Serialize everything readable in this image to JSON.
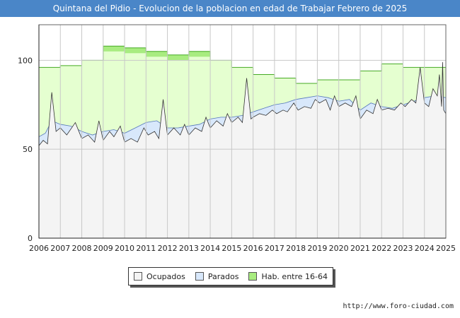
{
  "header": {
    "title": "Quintana del Pidio - Evolucion de la poblacion en edad de Trabajar Febrero de 2025"
  },
  "footer": {
    "source": "http://www.foro-ciudad.com"
  },
  "colors": {
    "title_bg": "#4a86c8",
    "hab_fill": "#e5ffd0",
    "hab_fill_dark": "#a8ec80",
    "hab_line": "#44aa22",
    "parados_fill": "#d8e8fb",
    "parados_line": "#5577bb",
    "ocupados_fill": "#f4f4f4",
    "ocupados_line": "#333333"
  },
  "chart_data": {
    "type": "area",
    "title": "Quintana del Pidio - Evolucion de la poblacion en edad de Trabajar Febrero de 2025",
    "xlim": [
      2006,
      2025
    ],
    "ylim": [
      0,
      120
    ],
    "x_ticks": [
      2006,
      2007,
      2008,
      2009,
      2010,
      2011,
      2012,
      2013,
      2014,
      2015,
      2016,
      2017,
      2018,
      2019,
      2020,
      2021,
      2022,
      2023,
      2024,
      2025
    ],
    "y_ticks": [
      0,
      50,
      100
    ],
    "grid": true,
    "legend_position": "bottom",
    "legend": [
      "Ocupados",
      "Parados",
      "Hab. entre 16-64"
    ],
    "hab_steps": [
      {
        "from": 2006,
        "to": 2007,
        "value": 96
      },
      {
        "from": 2007,
        "to": 2008,
        "value": 97
      },
      {
        "from": 2008,
        "to": 2009,
        "value": 100
      },
      {
        "from": 2009,
        "to": 2010,
        "value": 108
      },
      {
        "from": 2010,
        "to": 2011,
        "value": 107
      },
      {
        "from": 2011,
        "to": 2012,
        "value": 105
      },
      {
        "from": 2012,
        "to": 2013,
        "value": 103
      },
      {
        "from": 2013,
        "to": 2014,
        "value": 105
      },
      {
        "from": 2014,
        "to": 2015,
        "value": 100
      },
      {
        "from": 2015,
        "to": 2016,
        "value": 96
      },
      {
        "from": 2016,
        "to": 2017,
        "value": 92
      },
      {
        "from": 2017,
        "to": 2018,
        "value": 90
      },
      {
        "from": 2018,
        "to": 2019,
        "value": 87
      },
      {
        "from": 2019,
        "to": 2020,
        "value": 89
      },
      {
        "from": 2020,
        "to": 2021,
        "value": 89
      },
      {
        "from": 2021,
        "to": 2022,
        "value": 94
      },
      {
        "from": 2022,
        "to": 2023,
        "value": 98
      },
      {
        "from": 2023,
        "to": 2024,
        "value": 96
      },
      {
        "from": 2024,
        "to": 2025,
        "value": 96
      }
    ],
    "parados_points": [
      [
        2006.0,
        57
      ],
      [
        2006.3,
        59
      ],
      [
        2006.6,
        66
      ],
      [
        2007.0,
        64
      ],
      [
        2007.5,
        63
      ],
      [
        2008.0,
        60
      ],
      [
        2008.5,
        58
      ],
      [
        2009.0,
        60
      ],
      [
        2009.5,
        61
      ],
      [
        2010.0,
        59
      ],
      [
        2010.5,
        62
      ],
      [
        2011.0,
        65
      ],
      [
        2011.5,
        66
      ],
      [
        2012.0,
        62
      ],
      [
        2012.5,
        62
      ],
      [
        2013.0,
        63
      ],
      [
        2013.5,
        64
      ],
      [
        2014.0,
        67
      ],
      [
        2014.5,
        68
      ],
      [
        2015.0,
        68
      ],
      [
        2015.5,
        69
      ],
      [
        2016.0,
        71
      ],
      [
        2016.5,
        73
      ],
      [
        2017.0,
        75
      ],
      [
        2017.5,
        76
      ],
      [
        2018.0,
        78
      ],
      [
        2018.5,
        79
      ],
      [
        2019.0,
        80
      ],
      [
        2019.5,
        79
      ],
      [
        2020.0,
        77
      ],
      [
        2020.5,
        78
      ],
      [
        2021.0,
        72
      ],
      [
        2021.5,
        76
      ],
      [
        2022.0,
        74
      ],
      [
        2022.5,
        73
      ],
      [
        2023.0,
        75
      ],
      [
        2023.5,
        77
      ],
      [
        2024.0,
        79
      ],
      [
        2024.5,
        80
      ],
      [
        2025.0,
        79
      ]
    ],
    "ocupados_points": [
      [
        2006.0,
        52
      ],
      [
        2006.2,
        55
      ],
      [
        2006.4,
        53
      ],
      [
        2006.6,
        82
      ],
      [
        2006.8,
        60
      ],
      [
        2007.0,
        62
      ],
      [
        2007.3,
        58
      ],
      [
        2007.7,
        65
      ],
      [
        2008.0,
        56
      ],
      [
        2008.3,
        58
      ],
      [
        2008.6,
        54
      ],
      [
        2008.8,
        66
      ],
      [
        2009.0,
        55
      ],
      [
        2009.3,
        60
      ],
      [
        2009.5,
        57
      ],
      [
        2009.8,
        63
      ],
      [
        2010.0,
        54
      ],
      [
        2010.3,
        56
      ],
      [
        2010.6,
        54
      ],
      [
        2010.9,
        62
      ],
      [
        2011.1,
        58
      ],
      [
        2011.4,
        60
      ],
      [
        2011.6,
        56
      ],
      [
        2011.8,
        78
      ],
      [
        2012.0,
        58
      ],
      [
        2012.3,
        62
      ],
      [
        2012.6,
        58
      ],
      [
        2012.8,
        64
      ],
      [
        2013.0,
        58
      ],
      [
        2013.3,
        62
      ],
      [
        2013.6,
        60
      ],
      [
        2013.8,
        68
      ],
      [
        2014.0,
        62
      ],
      [
        2014.3,
        66
      ],
      [
        2014.6,
        63
      ],
      [
        2014.8,
        70
      ],
      [
        2015.0,
        65
      ],
      [
        2015.3,
        68
      ],
      [
        2015.5,
        65
      ],
      [
        2015.7,
        90
      ],
      [
        2015.9,
        67
      ],
      [
        2016.0,
        68
      ],
      [
        2016.3,
        70
      ],
      [
        2016.6,
        69
      ],
      [
        2016.9,
        72
      ],
      [
        2017.1,
        70
      ],
      [
        2017.4,
        72
      ],
      [
        2017.6,
        71
      ],
      [
        2017.9,
        76
      ],
      [
        2018.1,
        72
      ],
      [
        2018.4,
        74
      ],
      [
        2018.7,
        73
      ],
      [
        2018.9,
        78
      ],
      [
        2019.1,
        76
      ],
      [
        2019.4,
        78
      ],
      [
        2019.6,
        72
      ],
      [
        2019.8,
        80
      ],
      [
        2020.0,
        74
      ],
      [
        2020.3,
        76
      ],
      [
        2020.6,
        74
      ],
      [
        2020.8,
        80
      ],
      [
        2021.0,
        67
      ],
      [
        2021.3,
        72
      ],
      [
        2021.6,
        70
      ],
      [
        2021.8,
        78
      ],
      [
        2022.0,
        72
      ],
      [
        2022.3,
        73
      ],
      [
        2022.6,
        72
      ],
      [
        2022.9,
        76
      ],
      [
        2023.1,
        74
      ],
      [
        2023.4,
        78
      ],
      [
        2023.6,
        76
      ],
      [
        2023.8,
        96
      ],
      [
        2024.0,
        76
      ],
      [
        2024.2,
        74
      ],
      [
        2024.4,
        84
      ],
      [
        2024.6,
        80
      ],
      [
        2024.7,
        92
      ],
      [
        2024.8,
        74
      ],
      [
        2024.85,
        99
      ],
      [
        2024.9,
        72
      ],
      [
        2025.0,
        70
      ]
    ]
  }
}
